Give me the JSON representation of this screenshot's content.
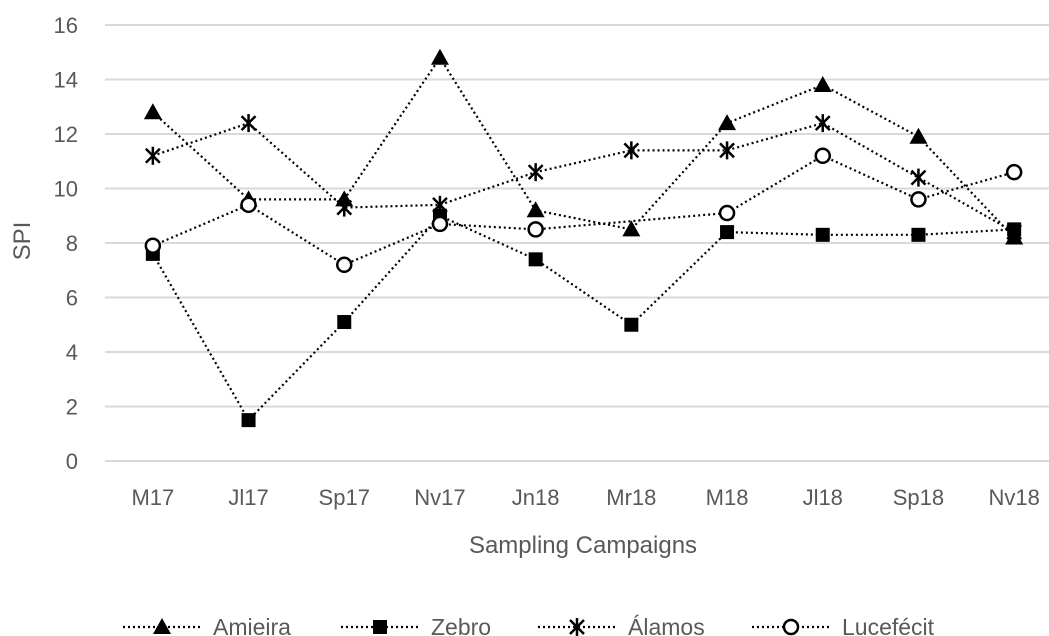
{
  "chart_data": {
    "type": "line",
    "xlabel": "Sampling Campaigns",
    "ylabel": "SPI",
    "ylim": [
      0,
      16
    ],
    "yticks": [
      0,
      2,
      4,
      6,
      8,
      10,
      12,
      14,
      16
    ],
    "grid": "horizontal",
    "legend_position": "bottom",
    "categories": [
      "M17",
      "Jl17",
      "Sp17",
      "Nv17",
      "Jn18",
      "Mr18",
      "M18",
      "Jl18",
      "Sp18",
      "Nv18"
    ],
    "series": [
      {
        "name": "Amieira",
        "marker": "triangle",
        "color": "#000000",
        "values": [
          12.8,
          9.6,
          9.6,
          14.8,
          9.2,
          8.5,
          12.4,
          13.8,
          11.9,
          8.2
        ]
      },
      {
        "name": "Zebro",
        "marker": "square",
        "color": "#000000",
        "values": [
          7.6,
          1.5,
          5.1,
          9.0,
          7.4,
          5.0,
          8.4,
          8.3,
          8.3,
          8.5
        ]
      },
      {
        "name": "Álamos",
        "marker": "star",
        "color": "#000000",
        "values": [
          11.2,
          12.4,
          9.3,
          9.4,
          10.6,
          11.4,
          11.4,
          12.4,
          10.4,
          8.4
        ]
      },
      {
        "name": "Lucefécit",
        "marker": "circle",
        "color": "#000000",
        "values": [
          7.9,
          9.4,
          7.2,
          8.7,
          8.5,
          null,
          9.1,
          11.2,
          9.6,
          10.6
        ]
      }
    ]
  },
  "colors": {
    "grid": "#d9d9d9",
    "text": "#595959",
    "series": "#000000"
  }
}
